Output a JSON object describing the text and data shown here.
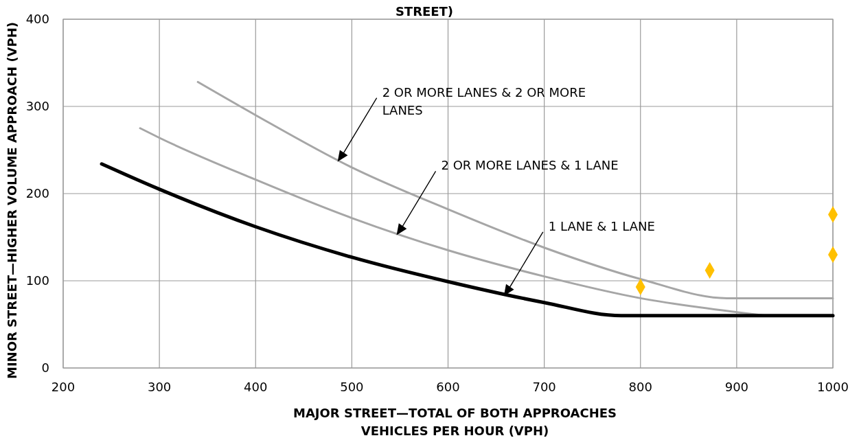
{
  "chart_data": {
    "type": "line",
    "title": "STREET)",
    "xlabel": "MAJOR STREET—TOTAL OF BOTH APPROACHES\nVEHICLES PER HOUR (VPH)",
    "ylabel": "MINOR STREET—HIGHER VOLUME APPROACH (VPH)",
    "xlim": [
      200,
      1000
    ],
    "xticks": [
      200,
      300,
      400,
      500,
      600,
      700,
      800,
      900,
      1000
    ],
    "ylim": [
      0,
      400
    ],
    "yticks": [
      0,
      100,
      200,
      300,
      400
    ],
    "grid": true,
    "marker": "none",
    "line_style": "solid",
    "series": [
      {
        "color": "#a6a6a6",
        "x": [
          340,
          400,
          500,
          600,
          700,
          800,
          890,
          1000
        ],
        "values": [
          328,
          290,
          230,
          182,
          138,
          102,
          80,
          80
        ]
      },
      {
        "color": "#a6a6a6",
        "x": [
          280,
          300,
          400,
          500,
          600,
          700,
          800,
          900,
          930
        ],
        "values": [
          275,
          264,
          216,
          172,
          135,
          105,
          80,
          64,
          60
        ]
      },
      {
        "color": "#000000",
        "x": [
          240,
          300,
          400,
          500,
          600,
          700,
          780,
          1000
        ],
        "values": [
          234,
          205,
          162,
          127,
          99,
          75,
          60,
          60
        ]
      },
      {
        "type": "scatter",
        "color": "#ffc000",
        "marker": "diamond",
        "x": [
          800,
          872,
          1000,
          1000
        ],
        "values": [
          93,
          112,
          176,
          130
        ]
      }
    ],
    "annotations": [
      "2 OR MORE LANES & 2 OR MORE LANES",
      "2 OR MORE LANES & 1 LANE",
      "1 LANE & 1 LANE"
    ]
  }
}
